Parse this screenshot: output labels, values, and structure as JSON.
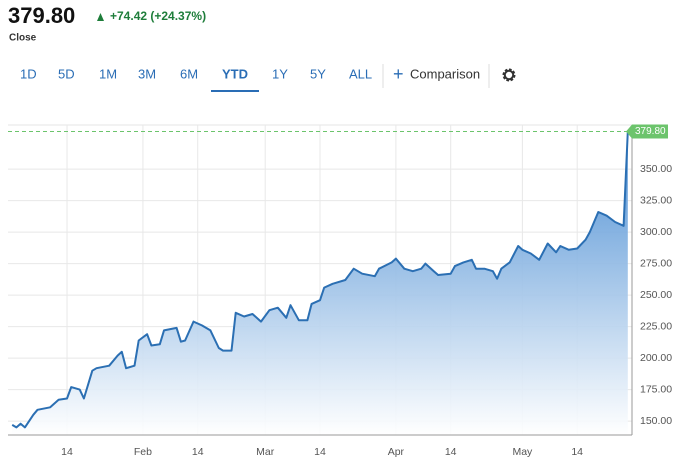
{
  "header": {
    "price": "379.80",
    "change": "+74.42 (+24.37%)",
    "caption": "Close"
  },
  "range_buttons": [
    "1D",
    "5D",
    "1M",
    "3M",
    "6M",
    "YTD",
    "1Y",
    "5Y",
    "ALL"
  ],
  "active_range": "YTD",
  "comparison": "Comparison",
  "chart_data": {
    "type": "area",
    "color": "#2b6fb3",
    "grid": true,
    "last_label": "379.80",
    "xlim": [
      0,
      148
    ],
    "xticks": [
      {
        "value": 14,
        "label": "14"
      },
      {
        "value": 32,
        "label": "Feb"
      },
      {
        "value": 45,
        "label": "14"
      },
      {
        "value": 61,
        "label": "Mar"
      },
      {
        "value": 74,
        "label": "14"
      },
      {
        "value": 92,
        "label": "Apr"
      },
      {
        "value": 105,
        "label": "14"
      },
      {
        "value": 122,
        "label": "May"
      },
      {
        "value": 135,
        "label": "14"
      }
    ],
    "ylim": [
      139,
      385
    ],
    "yticks": [
      {
        "value": 150,
        "label": "150.00"
      },
      {
        "value": 175,
        "label": "175.00"
      },
      {
        "value": 200,
        "label": "200.00"
      },
      {
        "value": 225,
        "label": "225.00"
      },
      {
        "value": 250,
        "label": "250.00"
      },
      {
        "value": 275,
        "label": "275.00"
      },
      {
        "value": 300,
        "label": "300.00"
      },
      {
        "value": 325,
        "label": "325.00"
      },
      {
        "value": 350,
        "label": "350.00"
      }
    ],
    "x": [
      1,
      2,
      3,
      4,
      6,
      7,
      10,
      12,
      14,
      15,
      17,
      18,
      20,
      21,
      24,
      26,
      27,
      28,
      30,
      31,
      33,
      34,
      36,
      37,
      40,
      41,
      42,
      44,
      46,
      48,
      50,
      51,
      53,
      54,
      56,
      58,
      60,
      62,
      64,
      66,
      67,
      69,
      71,
      72,
      74,
      75,
      77,
      80,
      82,
      84,
      87,
      88,
      91,
      92,
      94,
      96,
      98,
      99,
      101,
      102,
      105,
      106,
      108,
      110,
      111,
      113,
      115,
      116,
      117,
      119,
      121,
      122,
      124,
      126,
      128,
      130,
      131,
      133,
      135,
      137,
      138,
      140,
      142,
      144,
      146,
      147
    ],
    "values": [
      147,
      145,
      148,
      145,
      155,
      159,
      161,
      167,
      168,
      177,
      175,
      168,
      190,
      192,
      194,
      202,
      205,
      192,
      194,
      214,
      219,
      210,
      211,
      222,
      224,
      213,
      214,
      229,
      226,
      222,
      208,
      206,
      206,
      236,
      233,
      235,
      229,
      238,
      240,
      232,
      242,
      230,
      230,
      243,
      246,
      256,
      259,
      262,
      271,
      267,
      265,
      271,
      276,
      279,
      271,
      269,
      271,
      275,
      269,
      266,
      267,
      273,
      276,
      278,
      271,
      271,
      269,
      263,
      271,
      276,
      289,
      286,
      283,
      278,
      291,
      284,
      289,
      286,
      287,
      294,
      300,
      316,
      313,
      308,
      305,
      379.8
    ]
  }
}
